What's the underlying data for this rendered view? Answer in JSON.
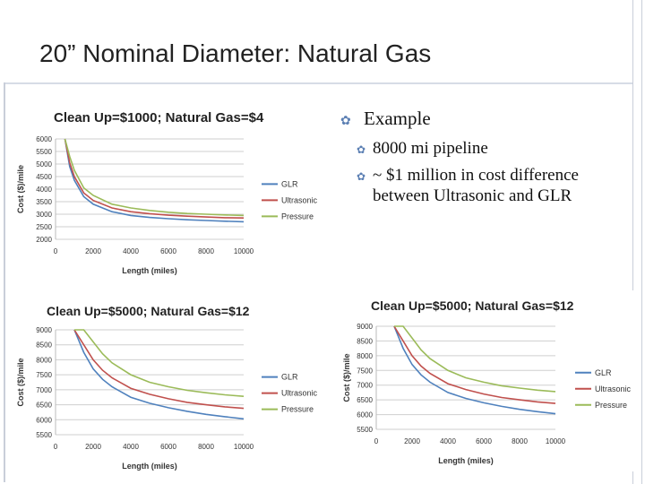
{
  "slide": {
    "title": "20” Nominal Diameter: Natural Gas"
  },
  "bullets": {
    "main": "Example",
    "subs": [
      {
        "text": "8000 mi pipeline"
      },
      {
        "text": "~ $1 million in cost difference between Ultrasonic and GLR"
      }
    ]
  },
  "colors": {
    "GLR": "#4f81bd",
    "Ultrasonic": "#c0504d",
    "Pressure": "#9bbb59",
    "bullet": "#5b7fb3"
  },
  "chart_data": [
    {
      "type": "line",
      "title": "Clean Up=$1000; Natural Gas=$4",
      "xlabel": "Length (miles)",
      "ylabel": "Cost ($)/mile",
      "xlim": [
        0,
        10000
      ],
      "ylim": [
        2000,
        6000
      ],
      "x_ticks": [
        "0",
        "2000",
        "4000",
        "6000",
        "8000",
        "10000"
      ],
      "y_ticks": [
        "2000",
        "2500",
        "3000",
        "3500",
        "4000",
        "4500",
        "5000",
        "5500",
        "6000"
      ],
      "grid": true,
      "legend": "right",
      "x": [
        500,
        750,
        1000,
        1500,
        2000,
        3000,
        4000,
        5000,
        6000,
        7000,
        8000,
        9000,
        10000
      ],
      "series": [
        {
          "name": "GLR",
          "values": [
            6000,
            4900,
            4350,
            3700,
            3400,
            3100,
            2950,
            2870,
            2820,
            2780,
            2750,
            2720,
            2700
          ]
        },
        {
          "name": "Ultrasonic",
          "values": [
            6000,
            5050,
            4500,
            3850,
            3550,
            3250,
            3100,
            3020,
            2960,
            2920,
            2890,
            2860,
            2850
          ]
        },
        {
          "name": "Pressure",
          "values": [
            6000,
            5300,
            4750,
            4050,
            3750,
            3400,
            3250,
            3150,
            3080,
            3030,
            3000,
            2970,
            2950
          ]
        }
      ]
    },
    {
      "type": "line",
      "title": "Clean Up=$5000; Natural Gas=$12",
      "xlabel": "Length (miles)",
      "ylabel": "Cost ($)/mile",
      "xlim": [
        0,
        10000
      ],
      "ylim": [
        5500,
        9000
      ],
      "x_ticks": [
        "0",
        "2000",
        "4000",
        "6000",
        "8000",
        "10000"
      ],
      "y_ticks": [
        "5500",
        "6000",
        "6500",
        "7000",
        "7500",
        "8000",
        "8500",
        "9000"
      ],
      "grid": true,
      "legend": "right",
      "x": [
        1000,
        1500,
        2000,
        2500,
        3000,
        4000,
        5000,
        6000,
        7000,
        8000,
        9000,
        10000
      ],
      "series": [
        {
          "name": "GLR",
          "values": [
            9000,
            8250,
            7700,
            7350,
            7100,
            6750,
            6550,
            6400,
            6280,
            6180,
            6100,
            6030
          ]
        },
        {
          "name": "Ultrasonic",
          "values": [
            9000,
            8500,
            8000,
            7650,
            7400,
            7050,
            6850,
            6700,
            6580,
            6500,
            6430,
            6380
          ]
        },
        {
          "name": "Pressure",
          "values": [
            9000,
            9000,
            8600,
            8200,
            7900,
            7500,
            7250,
            7100,
            6980,
            6900,
            6830,
            6780
          ]
        }
      ]
    },
    {
      "type": "line",
      "title": "Clean Up=$5000; Natural Gas=$12",
      "xlabel": "Length (miles)",
      "ylabel": "Cost ($)/mile",
      "xlim": [
        0,
        10000
      ],
      "ylim": [
        5500,
        9000
      ],
      "x_ticks": [
        "0",
        "2000",
        "4000",
        "6000",
        "8000",
        "10000"
      ],
      "y_ticks": [
        "5500",
        "6000",
        "6500",
        "7000",
        "7500",
        "8000",
        "8500",
        "9000"
      ],
      "grid": true,
      "legend": "right",
      "x": [
        1000,
        1500,
        2000,
        2500,
        3000,
        4000,
        5000,
        6000,
        7000,
        8000,
        9000,
        10000
      ],
      "series": [
        {
          "name": "GLR",
          "values": [
            9000,
            8250,
            7700,
            7350,
            7100,
            6750,
            6550,
            6400,
            6280,
            6180,
            6100,
            6030
          ]
        },
        {
          "name": "Ultrasonic",
          "values": [
            9000,
            8500,
            8000,
            7650,
            7400,
            7050,
            6850,
            6700,
            6580,
            6500,
            6430,
            6380
          ]
        },
        {
          "name": "Pressure",
          "values": [
            9000,
            9000,
            8600,
            8200,
            7900,
            7500,
            7250,
            7100,
            6980,
            6900,
            6830,
            6780
          ]
        }
      ]
    }
  ]
}
